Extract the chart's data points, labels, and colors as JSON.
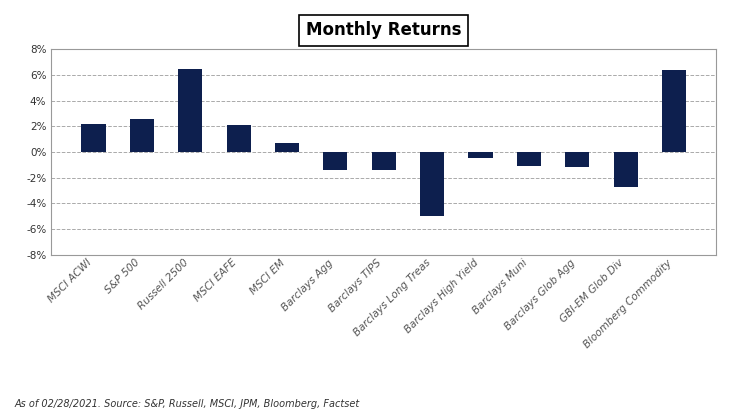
{
  "categories": [
    "MSCI ACWI",
    "S&P 500",
    "Russell 2500",
    "MSCI EAFE",
    "MSCI EM",
    "Barclays Agg",
    "Barclays TIPS",
    "Barclays Long Treas",
    "Barclays High Yield",
    "Barclays Muni",
    "Barclays Glob Agg",
    "GBI-EM Glob Div",
    "Bloomberg Commodity"
  ],
  "values": [
    2.2,
    2.6,
    6.5,
    2.1,
    0.7,
    -1.4,
    -1.4,
    -5.0,
    -0.5,
    -1.1,
    -1.2,
    -2.7,
    6.4
  ],
  "bar_color": "#0d1f4e",
  "title": "Monthly Returns",
  "ylim": [
    -8,
    8
  ],
  "yticks": [
    -8,
    -6,
    -4,
    -2,
    0,
    2,
    4,
    6,
    8
  ],
  "footnote": "As of 02/28/2021. Source: S&P, Russell, MSCI, JPM, Bloomberg, Factset",
  "background_color": "#ffffff",
  "plot_bg_color": "#ffffff",
  "grid_color": "#aaaaaa"
}
